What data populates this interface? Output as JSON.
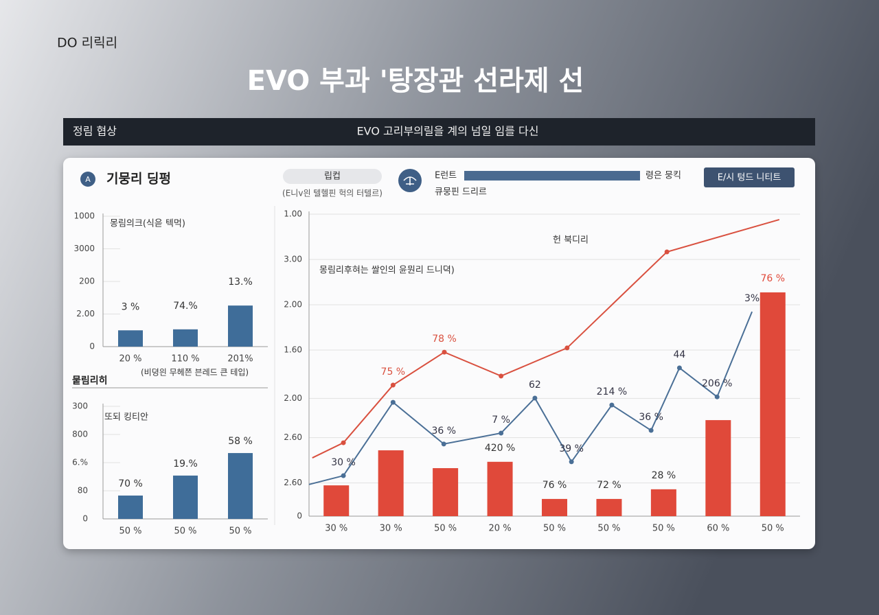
{
  "header": {
    "brand": "DO 리릭리",
    "title": "EVO 부과 '탕장관 선라제 선"
  },
  "banner": {
    "left": "정림 협상",
    "center": "EVO 고리부의릴을 계의 넘일 임를 다신"
  },
  "panel": {
    "icon": "A",
    "title": "기뭉리 딩펑",
    "pill": "립컵",
    "pill_caption": "(E니ⅴ읜 텔헬핀 헉의 터텔르)",
    "legend_label": "E런트",
    "legend_note": "령은 뭉킥",
    "legend_caption": "큐뭉핀 드리르",
    "button": "E/시 텅드 니티트"
  },
  "chart_data": [
    {
      "type": "bar",
      "subtitle": "몽림의크(식읃 텍먹)",
      "caption": "(비뎡읜 무헤쯘 븐레드 큰 테입)",
      "categories": [
        "20 %",
        "110 %",
        "201%"
      ],
      "values": [
        0.5,
        0.53,
        1.26
      ],
      "value_labels": [
        "3 %",
        "74.%",
        "13.%"
      ],
      "color": "#3f6d99",
      "ylim": [
        0,
        4
      ],
      "yticks": [
        0,
        {
          "value": 1,
          "label": "2.00"
        },
        {
          "value": 2,
          "label": "200"
        },
        {
          "value": 3,
          "label": "3000"
        },
        {
          "value": 4,
          "label": "1000"
        }
      ]
    },
    {
      "type": "bar",
      "title": "뭍림리히",
      "subtitle": "또되 킹티안",
      "categories": [
        "50 %",
        "50 %",
        "50 %"
      ],
      "values": [
        0.83,
        1.54,
        2.34
      ],
      "value_labels": [
        "70 %",
        "19.%",
        "58 %"
      ],
      "color": "#3f6d99",
      "ylim": [
        0,
        4
      ],
      "yticks": [
        0,
        {
          "value": 1,
          "label": "80"
        },
        {
          "value": 2,
          "label": "6.%"
        },
        {
          "value": 3,
          "label": "800"
        },
        {
          "value": 4,
          "label": "300"
        }
      ]
    },
    {
      "type": "combo",
      "annotations": [
        "헌 북디리",
        "몽림리후혀는 쌀인의 윤뭔리 드니뎍)"
      ],
      "categories": [
        "30 %",
        "30 %",
        "50 %",
        "20 %",
        "50 %",
        "50 %",
        "50 %",
        "60 %",
        "50 %"
      ],
      "xlim": [
        0,
        9
      ],
      "ylim": [
        0,
        100
      ],
      "grid": true,
      "yticks": [
        0,
        {
          "value": 11,
          "label": "2.60"
        },
        {
          "value": 26,
          "label": "2.60"
        },
        {
          "value": 39,
          "label": "2.00"
        },
        {
          "value": 55,
          "label": "1.60"
        },
        {
          "value": 70,
          "label": "2.00"
        },
        {
          "value": 85,
          "label": "3.00"
        },
        {
          "value": 100,
          "label": "1.00"
        }
      ],
      "series": [
        {
          "kind": "bar",
          "color": "#e0493a",
          "values": [
            10.2,
            21.8,
            15.9,
            18,
            5.7,
            5.7,
            8.9,
            31.8,
            74.1
          ],
          "value_labels": [
            null,
            null,
            null,
            "420 %",
            "76 %",
            "72 %",
            "28 %",
            null,
            "76 %"
          ]
        },
        {
          "kind": "line",
          "color": "#4a6f96",
          "x": [
            0,
            0.63,
            1.54,
            2.47,
            3.52,
            4.14,
            4.81,
            5.55,
            6.27,
            6.79,
            7.48,
            8.12
          ],
          "values": [
            10.5,
            13.4,
            37.7,
            23.9,
            27.5,
            39.1,
            18,
            36.8,
            28.4,
            49.1,
            39.5,
            67.7
          ],
          "value_labels": [
            null,
            "30 %",
            null,
            "36 %",
            "7 %",
            "62",
            "39 %",
            "214 %",
            "36 %",
            "44",
            "206 %",
            "3%"
          ]
        },
        {
          "kind": "line",
          "color": "#d9503f",
          "x": [
            0.06,
            0.63,
            1.54,
            2.48,
            3.52,
            4.73,
            6.56,
            8.62
          ],
          "values": [
            19.3,
            24.3,
            43.4,
            54.3,
            46.4,
            55.7,
            87.5,
            98.2
          ],
          "value_labels": [
            null,
            null,
            "75 %",
            "78 %",
            null,
            null,
            null,
            null
          ]
        }
      ]
    }
  ]
}
